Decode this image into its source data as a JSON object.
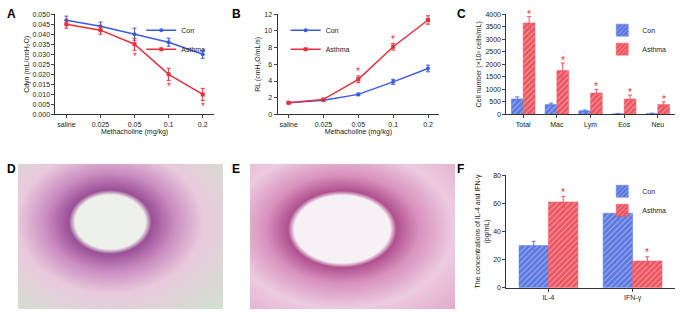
{
  "chart_data": [
    {
      "panel": "A",
      "type": "line",
      "x_label": "Methacholine (mg/kg)",
      "y_label": "Cdyn (mL/cmH₂O)",
      "categories": [
        "saline",
        "0.025",
        "0.05",
        "0.1",
        "0.2"
      ],
      "ylim": [
        0,
        0.05
      ],
      "yticks": [
        {
          "value": 0,
          "label": "0.000"
        },
        0.005,
        {
          "value": 0.01,
          "label": "0.010"
        },
        0.015,
        {
          "value": 0.02,
          "label": "0.020"
        },
        0.025,
        {
          "value": 0.03,
          "label": "0.030"
        },
        0.035,
        {
          "value": 0.04,
          "label": "0.040"
        },
        0.045,
        {
          "value": 0.05,
          "label": "0.050"
        }
      ],
      "grid": false,
      "legend": "top-right",
      "series": [
        {
          "name": "Con",
          "color": "#3b5bdb",
          "marker": "circle",
          "values": [
            0.047,
            0.044,
            0.04,
            0.036,
            0.03
          ],
          "errors": [
            0.002,
            0.002,
            0.003,
            0.002,
            0.002
          ]
        },
        {
          "name": "Asthma",
          "color": "#e5303c",
          "marker": "square",
          "values": [
            0.045,
            0.042,
            0.035,
            0.02,
            0.01
          ],
          "errors": [
            0.002,
            0.002,
            0.003,
            0.003,
            0.003
          ]
        }
      ],
      "annotations": [
        {
          "text": "*",
          "category": "0.05",
          "y": 0.029
        },
        {
          "text": "*",
          "category": "0.1",
          "y": 0.014
        },
        {
          "text": "*",
          "category": "0.2",
          "y": 0.004
        }
      ]
    },
    {
      "panel": "B",
      "type": "line",
      "x_label": "Methacholine (mg/kg)",
      "y_label": "RL (cmH₂O/mL/s)",
      "categories": [
        "saline",
        "0.025",
        "0.05",
        "0.1",
        "0.2"
      ],
      "ylim": [
        0,
        12
      ],
      "yticks": [
        0,
        2,
        4,
        6,
        8,
        10,
        12
      ],
      "grid": false,
      "legend": "top-left",
      "series": [
        {
          "name": "Con",
          "color": "#3b5bdb",
          "marker": "circle",
          "values": [
            1.4,
            1.7,
            2.4,
            3.9,
            5.5
          ],
          "errors": [
            0.1,
            0.1,
            0.15,
            0.3,
            0.4
          ]
        },
        {
          "name": "Asthma",
          "color": "#e5303c",
          "marker": "square",
          "values": [
            1.4,
            1.8,
            4.2,
            8.1,
            11.3
          ],
          "errors": [
            0.1,
            0.1,
            0.4,
            0.4,
            0.5
          ]
        }
      ],
      "annotations": [
        {
          "text": "*",
          "category": "0.05",
          "y": 5.1
        },
        {
          "text": "*",
          "category": "0.1",
          "y": 9.0
        },
        {
          "text": "*",
          "category": "0.2",
          "y": 12.3
        }
      ]
    },
    {
      "panel": "C",
      "type": "bar",
      "y_label": "Cell number (×10³ cells/mL)",
      "categories": [
        "Total",
        "Mac",
        "Lym",
        "Eos",
        "Neu"
      ],
      "ylim": [
        0,
        4000
      ],
      "yticks": [
        0,
        500,
        1000,
        1500,
        2000,
        2500,
        3000,
        3500,
        4000
      ],
      "grid": false,
      "legend": "top-right",
      "series": [
        {
          "name": "Con",
          "color": "#5b78e0",
          "values": [
            620,
            400,
            150,
            30,
            40
          ],
          "errors": [
            80,
            50,
            30,
            10,
            10
          ]
        },
        {
          "name": "Asthma",
          "color": "#ec5560",
          "values": [
            3650,
            1750,
            850,
            620,
            400
          ],
          "errors": [
            250,
            300,
            150,
            150,
            100
          ]
        }
      ],
      "annotations": [
        {
          "text": "*",
          "category": "Total",
          "y": 4000
        },
        {
          "text": "*",
          "category": "Mac",
          "y": 2150
        },
        {
          "text": "*",
          "category": "Lym",
          "y": 1100
        },
        {
          "text": "*",
          "category": "Eos",
          "y": 870
        },
        {
          "text": "*",
          "category": "Neu",
          "y": 600
        }
      ]
    },
    {
      "panel": "F",
      "type": "bar",
      "y_label": "The concentrations of IL-4 and IFN-γ (pg/mL)",
      "categories": [
        "IL-4",
        "IFN-γ"
      ],
      "ylim": [
        0,
        80
      ],
      "yticks": [
        0,
        20,
        40,
        60,
        80
      ],
      "grid": false,
      "legend": "top-right",
      "series": [
        {
          "name": "Con",
          "color": "#5b78e0",
          "values": [
            30,
            53
          ],
          "errors": [
            3,
            5
          ]
        },
        {
          "name": "Asthma",
          "color": "#ec5560",
          "values": [
            61,
            19
          ],
          "errors": [
            4,
            3
          ]
        }
      ],
      "annotations": [
        {
          "text": "*",
          "category": "IL-4",
          "y": 68
        },
        {
          "text": "*",
          "category": "IFN-γ",
          "y": 25
        }
      ]
    }
  ],
  "images": [
    {
      "panel": "D"
    },
    {
      "panel": "E"
    }
  ]
}
